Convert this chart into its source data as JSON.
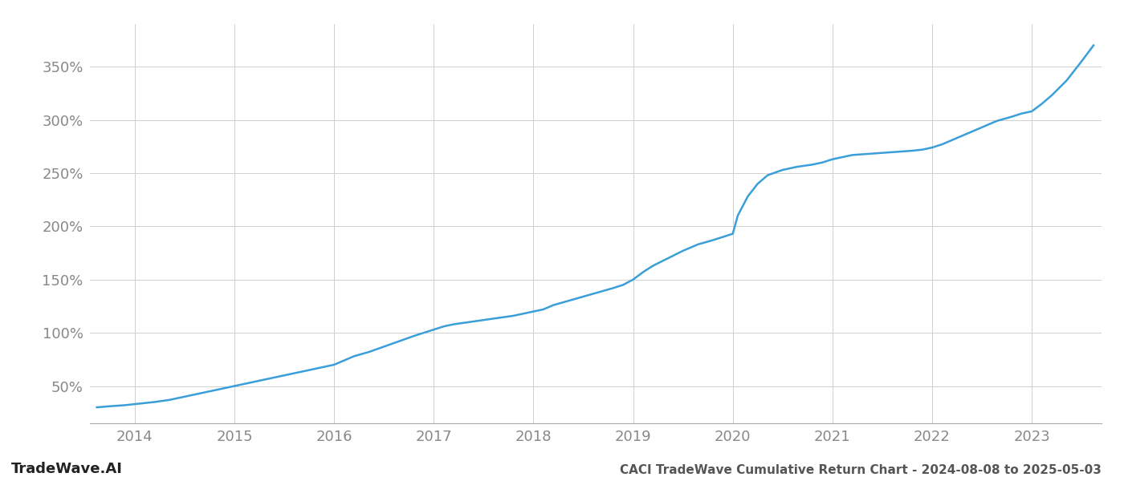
{
  "title": "CACI TradeWave Cumulative Return Chart - 2024-08-08 to 2025-05-03",
  "watermark": "TradeWave.AI",
  "line_color": "#3a9fd8",
  "background_color": "#ffffff",
  "grid_color": "#d0d0d0",
  "x_tick_color": "#888888",
  "y_tick_color": "#888888",
  "title_color": "#555555",
  "watermark_color": "#222222",
  "yticks": [
    50,
    100,
    150,
    200,
    250,
    300,
    350
  ],
  "ylim": [
    15,
    390
  ],
  "years": [
    2014,
    2015,
    2016,
    2017,
    2018,
    2019,
    2020,
    2021,
    2022,
    2023
  ],
  "xlim_start": 2013.55,
  "xlim_end": 2023.7,
  "data_x": [
    2013.62,
    2013.75,
    2013.9,
    2014.0,
    2014.1,
    2014.2,
    2014.35,
    2014.5,
    2014.65,
    2014.8,
    2014.9,
    2015.0,
    2015.1,
    2015.2,
    2015.35,
    2015.5,
    2015.65,
    2015.8,
    2015.9,
    2016.0,
    2016.1,
    2016.2,
    2016.35,
    2016.5,
    2016.65,
    2016.8,
    2016.9,
    2017.0,
    2017.1,
    2017.2,
    2017.35,
    2017.5,
    2017.65,
    2017.8,
    2017.9,
    2018.0,
    2018.1,
    2018.2,
    2018.35,
    2018.5,
    2018.65,
    2018.8,
    2018.9,
    2019.0,
    2019.1,
    2019.2,
    2019.35,
    2019.5,
    2019.65,
    2019.8,
    2019.9,
    2020.0,
    2020.05,
    2020.15,
    2020.25,
    2020.35,
    2020.5,
    2020.65,
    2020.8,
    2020.9,
    2021.0,
    2021.1,
    2021.2,
    2021.35,
    2021.5,
    2021.65,
    2021.8,
    2021.9,
    2022.0,
    2022.1,
    2022.2,
    2022.35,
    2022.5,
    2022.65,
    2022.8,
    2022.9,
    2023.0,
    2023.1,
    2023.2,
    2023.35,
    2023.5,
    2023.62
  ],
  "data_y": [
    30,
    31,
    32,
    33,
    34,
    35,
    37,
    40,
    43,
    46,
    48,
    50,
    52,
    54,
    57,
    60,
    63,
    66,
    68,
    70,
    74,
    78,
    82,
    87,
    92,
    97,
    100,
    103,
    106,
    108,
    110,
    112,
    114,
    116,
    118,
    120,
    122,
    126,
    130,
    134,
    138,
    142,
    145,
    150,
    157,
    163,
    170,
    177,
    183,
    187,
    190,
    193,
    210,
    228,
    240,
    248,
    253,
    256,
    258,
    260,
    263,
    265,
    267,
    268,
    269,
    270,
    271,
    272,
    274,
    277,
    281,
    287,
    293,
    299,
    303,
    306,
    308,
    315,
    323,
    337,
    355,
    370
  ],
  "line_width": 1.8,
  "figsize": [
    14.0,
    6.0
  ],
  "dpi": 100,
  "title_fontsize": 11,
  "tick_fontsize": 13,
  "watermark_fontsize": 13
}
